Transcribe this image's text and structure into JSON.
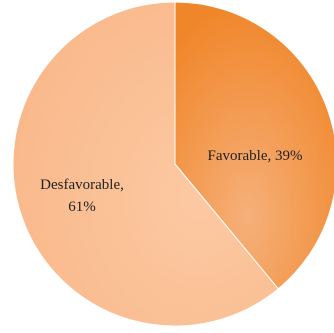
{
  "chart_data": {
    "type": "pie",
    "title": "",
    "start_angle_deg": 0,
    "direction": "clockwise",
    "legend": "none",
    "slices": [
      {
        "category": "Favorable",
        "value": 39,
        "label": "Favorable, 39%",
        "label_lines": [
          "Favorable, 39%"
        ],
        "color": "#f0862a",
        "color_light": "#f6b07a"
      },
      {
        "category": "Desfavorable",
        "value": 61,
        "label": "Desfavorable, 61%",
        "label_lines": [
          "Desfavorable,",
          "61%"
        ],
        "color": "#f9b88a",
        "color_light": "#fcc9a3"
      }
    ]
  }
}
